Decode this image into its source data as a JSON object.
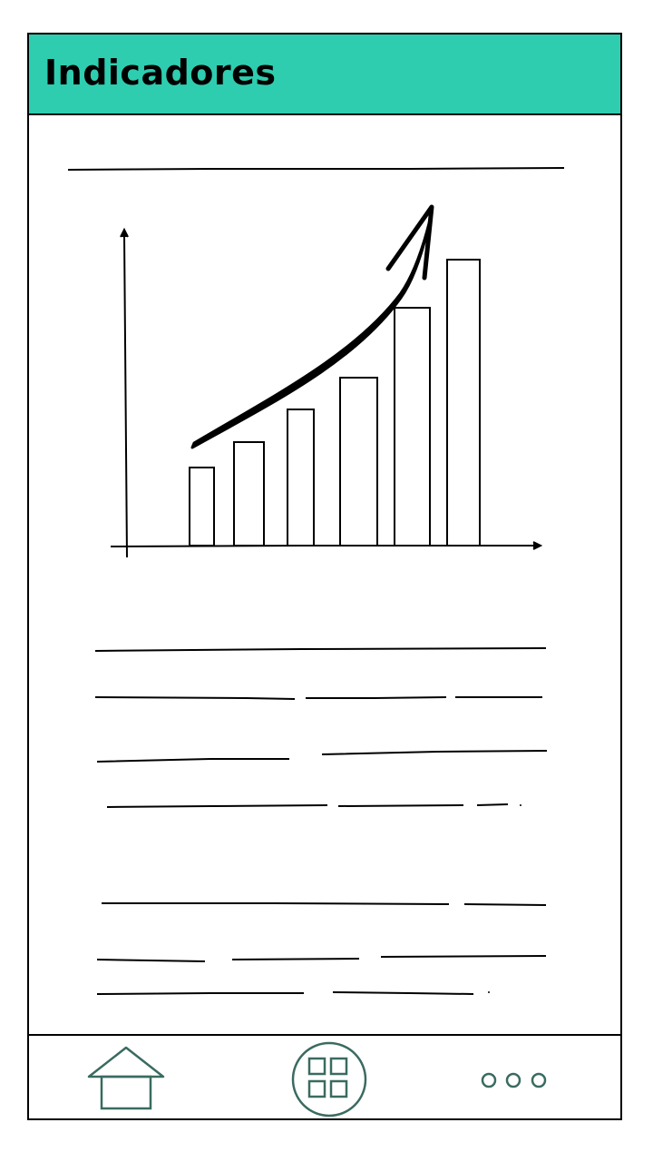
{
  "header": {
    "title": "Indicadores"
  },
  "chart_data": {
    "type": "bar",
    "categories": [
      "",
      "",
      "",
      "",
      "",
      ""
    ],
    "values": [
      86,
      114,
      150,
      185,
      262,
      315
    ],
    "trend_arrow": "increasing",
    "ylim": [
      0,
      350
    ],
    "grid": false
  },
  "nav": {
    "items": [
      {
        "icon": "home-icon"
      },
      {
        "icon": "grid-icon"
      },
      {
        "icon": "more-icon"
      }
    ]
  },
  "colors": {
    "header_bg": "#2ecdb0",
    "icon_stroke": "#3a6b60",
    "line": "#000000"
  }
}
